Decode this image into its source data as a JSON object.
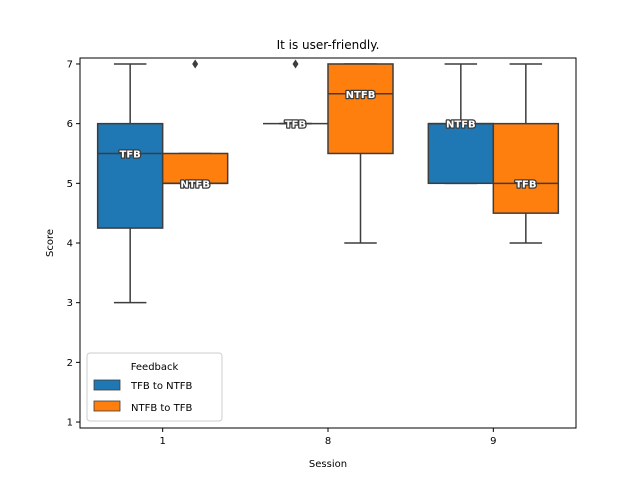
{
  "chart_data": {
    "type": "boxplot",
    "title": "It is user-friendly.",
    "xlabel": "Session",
    "ylabel": "Score",
    "categories": [
      "1",
      "8",
      "9"
    ],
    "ylim": [
      0.9,
      7.1
    ],
    "yticks": [
      1,
      2,
      3,
      4,
      5,
      6,
      7
    ],
    "legend": {
      "title": "Feedback",
      "position": "lower-left",
      "entries": [
        "TFB to NTFB",
        "NTFB to TFB"
      ]
    },
    "series": [
      {
        "name": "TFB to NTFB",
        "color": "#1f77b4",
        "boxes": [
          {
            "category": "1",
            "whisker_low": 3,
            "q1": 4.25,
            "median": 5.5,
            "q3": 6,
            "whisker_high": 7,
            "outliers": [],
            "label": "TFB"
          },
          {
            "category": "8",
            "whisker_low": 6,
            "q1": 6,
            "median": 6,
            "q3": 6,
            "whisker_high": 6,
            "outliers": [
              7
            ],
            "label": "TFB"
          },
          {
            "category": "9",
            "whisker_low": 5,
            "q1": 5,
            "median": 6,
            "q3": 6,
            "whisker_high": 7,
            "outliers": [],
            "label": "NTFB"
          }
        ]
      },
      {
        "name": "NTFB to TFB",
        "color": "#ff7f0e",
        "boxes": [
          {
            "category": "1",
            "whisker_low": 5,
            "q1": 5,
            "median": 5,
            "q3": 5.5,
            "whisker_high": 5.5,
            "outliers": [
              7
            ],
            "label": "NTFB"
          },
          {
            "category": "8",
            "whisker_low": 4,
            "q1": 5.5,
            "median": 6.5,
            "q3": 7,
            "whisker_high": 7,
            "outliers": [],
            "label": "NTFB"
          },
          {
            "category": "9",
            "whisker_low": 4,
            "q1": 4.5,
            "median": 5,
            "q3": 6,
            "whisker_high": 7,
            "outliers": [],
            "label": "TFB"
          }
        ]
      }
    ]
  }
}
